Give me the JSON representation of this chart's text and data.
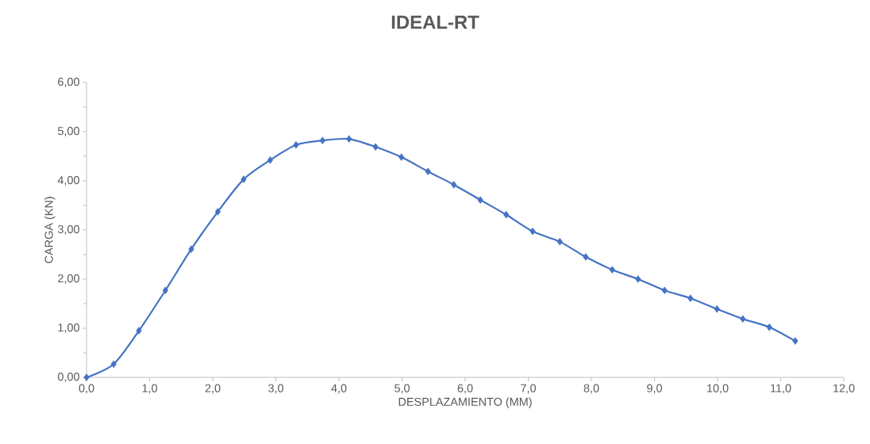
{
  "chart_data": {
    "type": "line",
    "title": "IDEAL-RT",
    "xlabel": "DESPLAZAMIENTO (MM)",
    "ylabel": "CARGA (KN)",
    "x": [
      0,
      0.43,
      0.83,
      1.25,
      1.66,
      2.08,
      2.49,
      2.91,
      3.32,
      3.74,
      4.16,
      4.58,
      4.99,
      5.41,
      5.82,
      6.24,
      6.65,
      7.07,
      7.5,
      7.91,
      8.33,
      8.74,
      9.16,
      9.57,
      9.99,
      10.4,
      10.82,
      11.23
    ],
    "series": [
      {
        "color": "#4472c4",
        "values": [
          0,
          0.27,
          0.95,
          1.77,
          2.61,
          3.37,
          4.03,
          4.42,
          4.73,
          4.82,
          4.85,
          4.69,
          4.48,
          4.19,
          3.92,
          3.61,
          3.31,
          2.97,
          2.76,
          2.45,
          2.19,
          2.0,
          1.77,
          1.61,
          1.39,
          1.19,
          1.02,
          0.74
        ]
      }
    ],
    "xlim": [
      0,
      12
    ],
    "ylim": [
      0,
      6
    ],
    "xticks": [
      {
        "value": 0,
        "label": "0,0"
      },
      {
        "value": 1,
        "label": "1,0"
      },
      {
        "value": 2,
        "label": "2,0"
      },
      {
        "value": 3,
        "label": "3,0"
      },
      {
        "value": 4,
        "label": "4,0"
      },
      {
        "value": 5,
        "label": "5,0"
      },
      {
        "value": 6,
        "label": "6,0"
      },
      {
        "value": 7,
        "label": "7,0"
      },
      {
        "value": 8,
        "label": "8,0"
      },
      {
        "value": 9,
        "label": "9,0"
      },
      {
        "value": 10,
        "label": "10,0"
      },
      {
        "value": 11,
        "label": "11,0"
      },
      {
        "value": 12,
        "label": "12,0"
      }
    ],
    "yticks": [
      {
        "value": 0,
        "label": "0,00"
      },
      {
        "value": 1,
        "label": "1,00"
      },
      {
        "value": 2,
        "label": "2,00"
      },
      {
        "value": 3,
        "label": "3,00"
      },
      {
        "value": 4,
        "label": "4,00"
      },
      {
        "value": 5,
        "label": "5,00"
      },
      {
        "value": 6,
        "label": "6,00"
      }
    ],
    "grid": false,
    "legend": false,
    "marker": "diamond",
    "line_style": "solid"
  }
}
